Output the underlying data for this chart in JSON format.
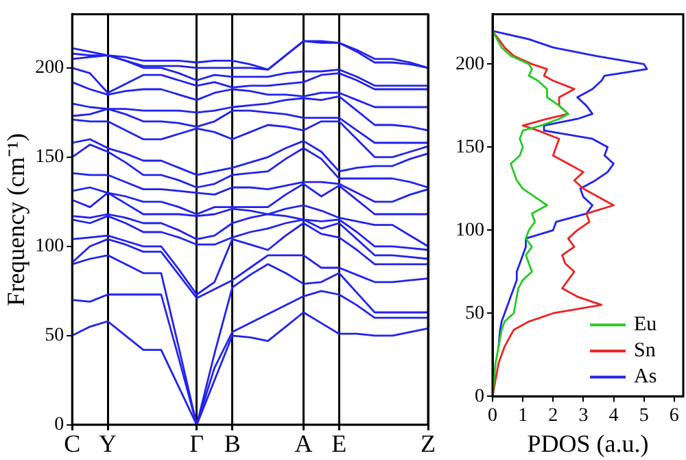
{
  "chart_data": [
    {
      "type": "line",
      "ylabel": "Frequency (cm⁻¹)",
      "categories": [
        "C",
        null,
        "Y",
        null,
        null,
        null,
        null,
        "Γ",
        null,
        "B",
        null,
        null,
        null,
        "A",
        null,
        "E",
        null,
        null,
        null,
        null,
        "Z"
      ],
      "ylim": [
        0,
        230
      ],
      "yticks": [
        0,
        50,
        100,
        150,
        200
      ],
      "grid": "x",
      "marker": "none",
      "series": [
        {
          "color": "#2222ee",
          "values": [
            50,
            55,
            58,
            50,
            42,
            42,
            21,
            0,
            25,
            50,
            49,
            47,
            55,
            63,
            57,
            51,
            51,
            50,
            50,
            52,
            54
          ]
        },
        {
          "color": "#2222ee",
          "values": [
            70,
            69,
            73,
            73,
            73,
            73,
            37,
            0,
            32,
            52,
            57,
            62,
            67,
            72,
            75,
            73,
            67,
            60,
            60,
            60,
            60
          ]
        },
        {
          "color": "#2222ee",
          "values": [
            90,
            93,
            95,
            90,
            85,
            85,
            43,
            0,
            40,
            77,
            84,
            90,
            85,
            79,
            80,
            85,
            74,
            63,
            63,
            63,
            63
          ]
        },
        {
          "color": "#2222ee",
          "values": [
            91,
            100,
            104,
            101,
            97,
            97,
            84,
            71,
            76,
            81,
            88,
            95,
            95,
            95,
            88,
            88,
            84,
            80,
            80,
            81,
            82
          ]
        },
        {
          "color": "#2222ee",
          "values": [
            104,
            105,
            106,
            103,
            100,
            100,
            87,
            73,
            80,
            104,
            101,
            98,
            106,
            113,
            107,
            105,
            98,
            90,
            90,
            90,
            90
          ]
        },
        {
          "color": "#2222ee",
          "values": [
            115,
            113,
            117,
            113,
            108,
            108,
            105,
            101,
            101,
            105,
            108,
            110,
            113,
            115,
            110,
            113,
            104,
            95,
            95,
            94,
            93
          ]
        },
        {
          "color": "#2222ee",
          "values": [
            117,
            116,
            118,
            116,
            113,
            113,
            109,
            104,
            106,
            113,
            116,
            118,
            117,
            115,
            114,
            115,
            108,
            100,
            100,
            99,
            98
          ]
        },
        {
          "color": "#2222ee",
          "values": [
            126,
            122,
            130,
            124,
            118,
            118,
            118,
            117,
            118,
            121,
            120,
            118,
            121,
            123,
            120,
            116,
            114,
            112,
            112,
            106,
            100
          ]
        },
        {
          "color": "#2222ee",
          "values": [
            131,
            133,
            130,
            128,
            125,
            125,
            122,
            118,
            122,
            122,
            122,
            122,
            129,
            135,
            128,
            134,
            126,
            118,
            118,
            118,
            118
          ]
        },
        {
          "color": "#2222ee",
          "values": [
            141,
            140,
            140,
            136,
            132,
            132,
            131,
            130,
            129,
            133,
            133,
            132,
            134,
            136,
            136,
            135,
            130,
            125,
            125,
            129,
            132
          ]
        },
        {
          "color": "#2222ee",
          "values": [
            150,
            157,
            153,
            147,
            140,
            140,
            137,
            133,
            135,
            140,
            141,
            142,
            149,
            155,
            149,
            138,
            138,
            138,
            138,
            136,
            133
          ]
        },
        {
          "color": "#2222ee",
          "values": [
            158,
            160,
            155,
            152,
            148,
            148,
            144,
            140,
            142,
            144,
            147,
            150,
            155,
            159,
            153,
            142,
            144,
            145,
            145,
            149,
            152
          ]
        },
        {
          "color": "#2222ee",
          "values": [
            171,
            170,
            170,
            165,
            160,
            160,
            163,
            166,
            164,
            160,
            164,
            168,
            167,
            165,
            170,
            170,
            160,
            150,
            150,
            153,
            156
          ]
        },
        {
          "color": "#2222ee",
          "values": [
            173,
            174,
            177,
            174,
            170,
            170,
            169,
            167,
            170,
            176,
            176,
            175,
            174,
            172,
            172,
            172,
            165,
            158,
            158,
            158,
            158
          ]
        },
        {
          "color": "#2222ee",
          "values": [
            180,
            178,
            177,
            177,
            176,
            176,
            176,
            175,
            176,
            178,
            179,
            180,
            182,
            183,
            182,
            184,
            176,
            168,
            168,
            167,
            165
          ]
        },
        {
          "color": "#2222ee",
          "values": [
            192,
            188,
            185,
            187,
            188,
            188,
            185,
            182,
            186,
            188,
            187,
            185,
            185,
            184,
            186,
            186,
            182,
            178,
            178,
            178,
            178
          ]
        },
        {
          "color": "#2222ee",
          "values": [
            200,
            197,
            186,
            191,
            196,
            196,
            193,
            190,
            192,
            189,
            190,
            190,
            191,
            192,
            196,
            197,
            193,
            188,
            188,
            188,
            188
          ]
        },
        {
          "color": "#2222ee",
          "values": [
            205,
            206,
            207,
            204,
            200,
            200,
            197,
            193,
            196,
            195,
            195,
            195,
            197,
            198,
            198,
            199,
            195,
            190,
            190,
            190,
            190
          ]
        },
        {
          "color": "#2222ee",
          "values": [
            208,
            207,
            207,
            204,
            201,
            201,
            201,
            200,
            200,
            200,
            200,
            199,
            207,
            215,
            214,
            214,
            210,
            205,
            205,
            203,
            200
          ]
        },
        {
          "color": "#2222ee",
          "values": [
            211,
            209,
            207,
            206,
            204,
            204,
            204,
            203,
            204,
            204,
            202,
            199,
            207,
            215,
            215,
            214,
            209,
            203,
            203,
            202,
            200
          ]
        }
      ]
    },
    {
      "type": "line",
      "xlabel": "PDOS (a.u.)",
      "xlim": [
        0,
        6.3
      ],
      "xticks": [
        0,
        1,
        2,
        3,
        4,
        5,
        6
      ],
      "ylim": [
        0,
        230
      ],
      "yticks": [
        0,
        50,
        100,
        150,
        200
      ],
      "grid": false,
      "marker": "none",
      "legend": "bottom right",
      "series": [
        {
          "name": "Eu",
          "color": "#22cc22",
          "x": [
            0,
            0.05,
            0.1,
            0.2,
            0.3,
            0.4,
            0.7,
            0.75,
            0.8,
            0.85,
            1.0,
            1.3,
            1.2,
            1.1,
            1.3,
            1.1,
            1.2,
            1.4,
            1.3,
            1.8,
            1.4,
            1.0,
            0.8,
            0.7,
            0.6,
            0.9,
            1.0,
            0.9,
            1.0,
            1.6,
            2.2,
            2.5,
            2.2,
            1.8,
            1.8,
            1.5,
            1.2,
            1.3,
            1.2,
            0.6,
            0.3,
            0.15,
            0
          ],
          "values": [
            0,
            10,
            20,
            30,
            40,
            45,
            50,
            55,
            60,
            65,
            70,
            75,
            80,
            85,
            90,
            95,
            100,
            105,
            110,
            115,
            120,
            125,
            130,
            135,
            140,
            145,
            150,
            155,
            160,
            163,
            167,
            170,
            175,
            180,
            185,
            190,
            193,
            197,
            200,
            205,
            210,
            215,
            220
          ]
        },
        {
          "name": "Sn",
          "color": "#ee2222",
          "x": [
            0,
            0.1,
            0.2,
            0.4,
            0.7,
            1.2,
            2.0,
            3.6,
            2.8,
            2.3,
            2.5,
            2.7,
            2.4,
            2.3,
            2.7,
            2.5,
            2.8,
            3.2,
            3.1,
            4.0,
            3.5,
            3.0,
            2.7,
            3.0,
            2.5,
            2.0,
            2.1,
            2.2,
            1.5,
            1.0,
            1.8,
            2.5,
            2.2,
            2.2,
            2.7,
            2.0,
            1.7,
            1.8,
            1.3,
            0.7,
            0.4,
            0.2,
            0
          ],
          "values": [
            0,
            10,
            20,
            30,
            40,
            45,
            50,
            55,
            60,
            65,
            70,
            75,
            80,
            85,
            90,
            95,
            100,
            105,
            110,
            115,
            120,
            125,
            130,
            135,
            140,
            145,
            150,
            155,
            160,
            163,
            167,
            170,
            175,
            180,
            185,
            190,
            193,
            197,
            200,
            205,
            210,
            215,
            220
          ]
        },
        {
          "name": "As",
          "color": "#2222ee",
          "x": [
            0.2,
            0.25,
            0.3,
            0.4,
            0.5,
            0.6,
            0.7,
            0.8,
            0.8,
            0.9,
            1.0,
            1.1,
            1.1,
            2.0,
            2.1,
            3.1,
            3.3,
            3.0,
            2.9,
            3.4,
            3.8,
            4.0,
            3.7,
            3.8,
            3.3,
            1.7,
            1.7,
            2.8,
            3.3,
            3.1,
            2.8,
            3.3,
            3.6,
            3.7,
            5.1,
            5.0,
            3.4,
            2.0,
            1.2,
            0
          ],
          "values": [
            30,
            40,
            45,
            50,
            55,
            60,
            65,
            70,
            75,
            80,
            85,
            90,
            95,
            100,
            105,
            110,
            115,
            120,
            125,
            130,
            135,
            140,
            145,
            150,
            155,
            160,
            163,
            167,
            170,
            175,
            180,
            185,
            190,
            193,
            197,
            200,
            205,
            210,
            215,
            220
          ]
        }
      ]
    }
  ]
}
